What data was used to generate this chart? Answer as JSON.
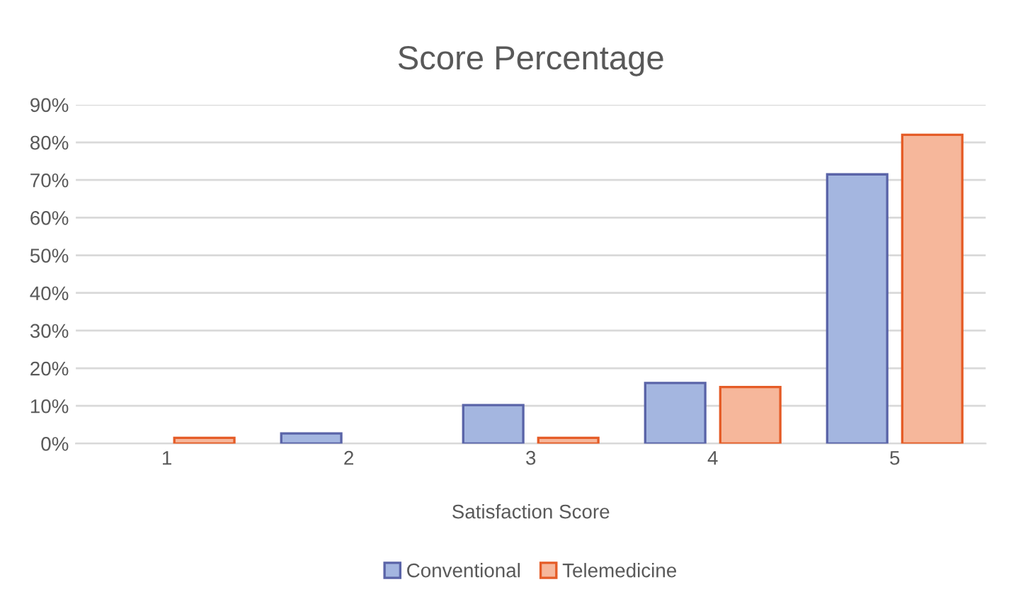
{
  "chart_data": {
    "type": "bar",
    "title": "Score Percentage",
    "xlabel": "Satisfaction Score",
    "categories": [
      "1",
      "2",
      "3",
      "4",
      "5"
    ],
    "series": [
      {
        "name": "Conventional",
        "color": "#a4b6e0",
        "values": [
          null,
          2.7,
          10.2,
          16.1,
          71.5
        ]
      },
      {
        "name": "Telemedicine",
        "color": "#f6b79b",
        "values": [
          1.5,
          null,
          1.5,
          15,
          82
        ]
      }
    ],
    "ylim": [
      0,
      90
    ],
    "yticks": [
      {
        "value": 0,
        "label": "0%"
      },
      {
        "value": 10,
        "label": "10%"
      },
      {
        "value": 20,
        "label": "20%"
      },
      {
        "value": 30,
        "label": "30%"
      },
      {
        "value": 40,
        "label": "40%"
      },
      {
        "value": 50,
        "label": "50%"
      },
      {
        "value": 60,
        "label": "60%"
      },
      {
        "value": 70,
        "label": "70%"
      },
      {
        "value": 80,
        "label": "80%"
      },
      {
        "value": 90,
        "label": "90%"
      }
    ],
    "grid": "y",
    "legend": "bottom"
  }
}
